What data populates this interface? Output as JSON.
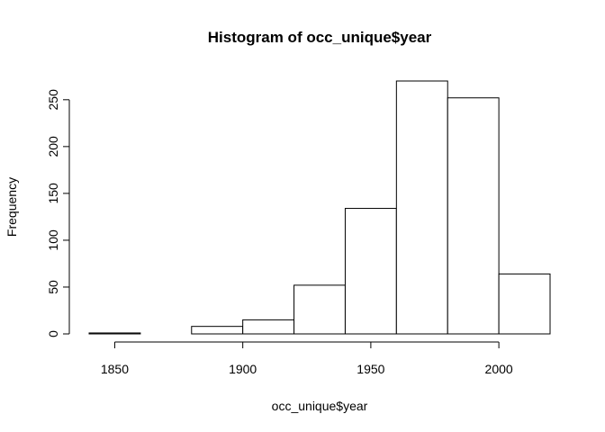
{
  "chart_data": {
    "type": "bar",
    "title": "Histogram of occ_unique$year",
    "xlabel": "occ_unique$year",
    "ylabel": "Frequency",
    "bins": [
      {
        "start": 1840,
        "end": 1860,
        "count": 1
      },
      {
        "start": 1860,
        "end": 1880,
        "count": 0
      },
      {
        "start": 1880,
        "end": 1900,
        "count": 8
      },
      {
        "start": 1900,
        "end": 1920,
        "count": 15
      },
      {
        "start": 1920,
        "end": 1940,
        "count": 52
      },
      {
        "start": 1940,
        "end": 1960,
        "count": 134
      },
      {
        "start": 1960,
        "end": 1980,
        "count": 270
      },
      {
        "start": 1980,
        "end": 2000,
        "count": 252
      },
      {
        "start": 2000,
        "end": 2020,
        "count": 64
      }
    ],
    "xlim": [
      1840,
      2020
    ],
    "ylim": [
      0,
      270
    ],
    "x_ticks": [
      "1850",
      "1900",
      "1950",
      "2000"
    ],
    "y_ticks": [
      "0",
      "50",
      "100",
      "150",
      "200",
      "250"
    ],
    "grid": false,
    "bar_fill": "#ffffff",
    "bar_stroke": "#000000"
  }
}
